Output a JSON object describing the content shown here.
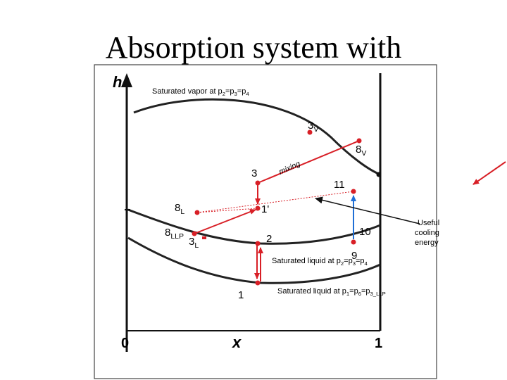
{
  "slide": {
    "title": "Absorption system with"
  },
  "colors": {
    "red": "#d81f26",
    "blue": "#1f6fd6",
    "curve": "#222222",
    "frame": "#333333"
  },
  "axes": {
    "y_label": "h",
    "x_label": "x",
    "origin": "0",
    "x_end": "1"
  },
  "labels": {
    "saturated_vapor": {
      "text": "Saturated vapor at p",
      "s1": "2",
      "m1": "=p",
      "s2": "3",
      "m2": "=p",
      "s3": "4"
    },
    "liquid_upper": {
      "text": "Saturated liquid at p",
      "s1": "2",
      "m1": "=p",
      "s2": "3",
      "m2": "=p",
      "s3": "4"
    },
    "liquid_lower": {
      "text": "Saturated liquid at p",
      "s1": "1",
      "m1": "=p",
      "s2": "6",
      "m2": "=p",
      "s3": "3_LLP"
    },
    "useful": [
      "Useful",
      "cooling",
      "energy"
    ],
    "mixing": "mixing"
  },
  "points": {
    "p3v": {
      "main": "3",
      "sub": "V"
    },
    "p8v": {
      "main": "8",
      "sub": "V"
    },
    "p3": {
      "main": "3"
    },
    "p11": {
      "main": "11"
    },
    "p8l": {
      "main": "8",
      "sub": "L"
    },
    "p1prime": {
      "main": "1'"
    },
    "p8llp": {
      "main": "8",
      "sub": "LLP"
    },
    "p3l": {
      "main": "3",
      "sub": "L"
    },
    "p2": {
      "main": "2"
    },
    "p10": {
      "main": "10"
    },
    "p9": {
      "main": "9"
    },
    "p1": {
      "main": "1"
    }
  }
}
